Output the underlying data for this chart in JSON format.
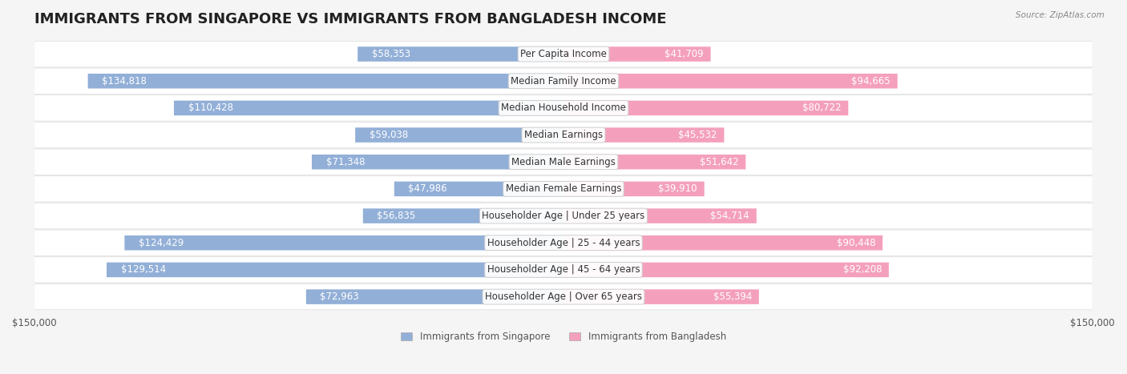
{
  "title": "IMMIGRANTS FROM SINGAPORE VS IMMIGRANTS FROM BANGLADESH INCOME",
  "source": "Source: ZipAtlas.com",
  "categories": [
    "Per Capita Income",
    "Median Family Income",
    "Median Household Income",
    "Median Earnings",
    "Median Male Earnings",
    "Median Female Earnings",
    "Householder Age | Under 25 years",
    "Householder Age | 25 - 44 years",
    "Householder Age | 45 - 64 years",
    "Householder Age | Over 65 years"
  ],
  "singapore_values": [
    58353,
    134818,
    110428,
    59038,
    71348,
    47986,
    56835,
    124429,
    129514,
    72963
  ],
  "bangladesh_values": [
    41709,
    94665,
    80722,
    45532,
    51642,
    39910,
    54714,
    90448,
    92208,
    55394
  ],
  "singapore_color": "#92afd7",
  "bangladesh_color": "#f4a0bc",
  "singapore_label_color_outside": "#555555",
  "singapore_label_color_inside": "#ffffff",
  "bangladesh_label_color_outside": "#555555",
  "bangladesh_label_color_inside": "#ffffff",
  "background_color": "#f5f5f5",
  "row_bg_color": "#ffffff",
  "row_alt_bg_color": "#f0f0f0",
  "max_value": 150000,
  "legend_singapore": "Immigrants from Singapore",
  "legend_bangladesh": "Immigrants from Bangladesh",
  "title_fontsize": 13,
  "label_fontsize": 8.5,
  "category_fontsize": 8.5,
  "axis_fontsize": 8.5
}
